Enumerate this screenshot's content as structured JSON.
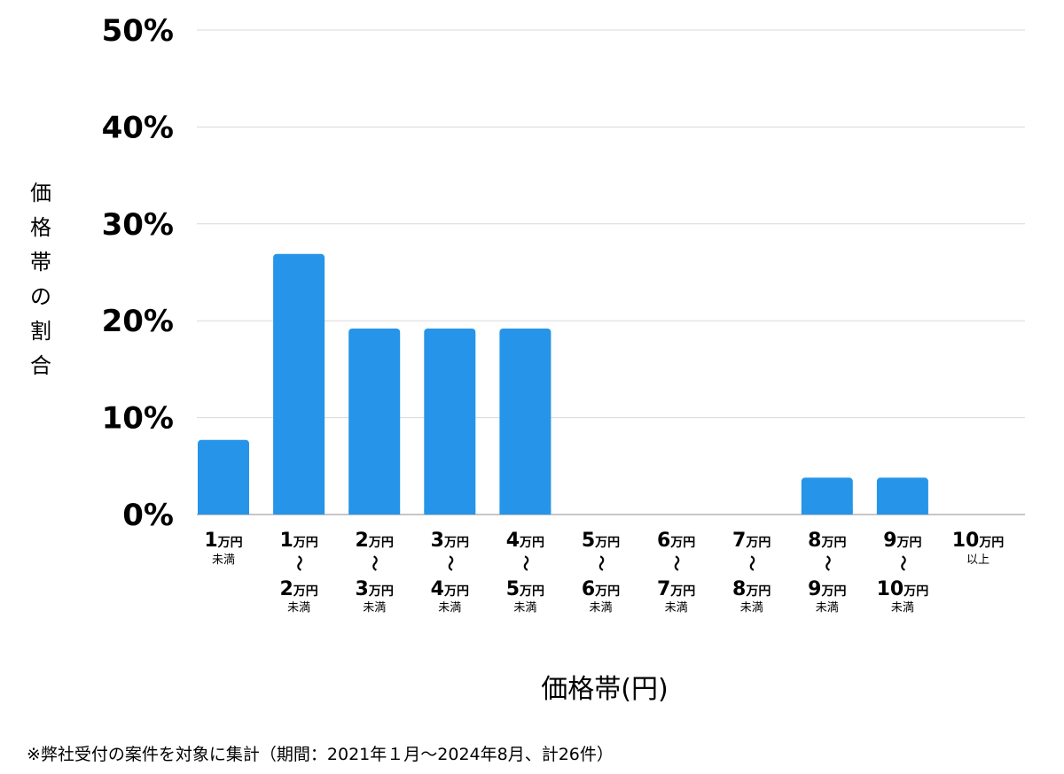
{
  "chart_data": {
    "type": "bar",
    "title": "",
    "xlabel": "価格帯(円)",
    "ylabel": "価格帯の割合",
    "ylim": [
      0,
      50
    ],
    "yticks": [
      "0%",
      "10%",
      "20%",
      "30%",
      "40%",
      "50%"
    ],
    "grid": true,
    "categories": [
      {
        "top": "1",
        "top_unit": "万円",
        "mid": "",
        "bottom": "",
        "bottom_unit": "",
        "note": "未満"
      },
      {
        "top": "1",
        "top_unit": "万円",
        "mid": "〜",
        "bottom": "2",
        "bottom_unit": "万円",
        "note": "未満"
      },
      {
        "top": "2",
        "top_unit": "万円",
        "mid": "〜",
        "bottom": "3",
        "bottom_unit": "万円",
        "note": "未満"
      },
      {
        "top": "3",
        "top_unit": "万円",
        "mid": "〜",
        "bottom": "4",
        "bottom_unit": "万円",
        "note": "未満"
      },
      {
        "top": "4",
        "top_unit": "万円",
        "mid": "〜",
        "bottom": "5",
        "bottom_unit": "万円",
        "note": "未満"
      },
      {
        "top": "5",
        "top_unit": "万円",
        "mid": "〜",
        "bottom": "6",
        "bottom_unit": "万円",
        "note": "未満"
      },
      {
        "top": "6",
        "top_unit": "万円",
        "mid": "〜",
        "bottom": "7",
        "bottom_unit": "万円",
        "note": "未満"
      },
      {
        "top": "7",
        "top_unit": "万円",
        "mid": "〜",
        "bottom": "8",
        "bottom_unit": "万円",
        "note": "未満"
      },
      {
        "top": "8",
        "top_unit": "万円",
        "mid": "〜",
        "bottom": "9",
        "bottom_unit": "万円",
        "note": "未満"
      },
      {
        "top": "9",
        "top_unit": "万円",
        "mid": "〜",
        "bottom": "10",
        "bottom_unit": "万円",
        "note": "未満"
      },
      {
        "top": "10",
        "top_unit": "万円",
        "mid": "",
        "bottom": "",
        "bottom_unit": "",
        "note": "以上"
      }
    ],
    "values": [
      7.7,
      26.9,
      19.2,
      19.2,
      19.2,
      0,
      0,
      0,
      3.8,
      3.8,
      0
    ],
    "bar_color": "#2694e8",
    "grid_color": "#d9d9d9"
  },
  "footnote": "※弊社受付の案件を対象に集計（期間：2021年１月〜2024年8月、計26件）"
}
